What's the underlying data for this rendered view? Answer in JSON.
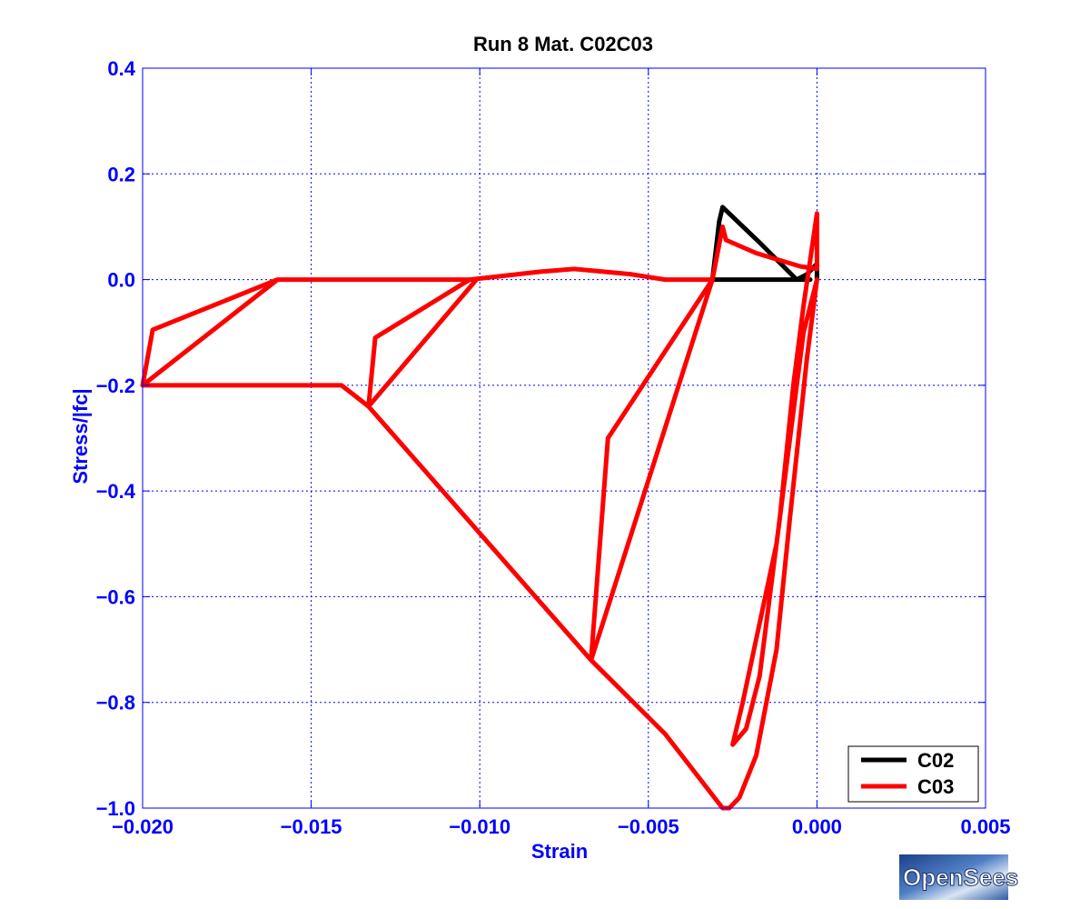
{
  "chart_data": {
    "type": "line",
    "title": "Run 8    Mat. C02C03",
    "xlabel": "Strain",
    "ylabel": "Stress/|fc|",
    "xlim": [
      -0.02,
      0.005
    ],
    "ylim": [
      -1.0,
      0.4
    ],
    "xticks": [
      -0.02,
      -0.015,
      -0.01,
      -0.005,
      0.0,
      0.005
    ],
    "xtick_labels": [
      "−0.020",
      "−0.015",
      "−0.010",
      "−0.005",
      "0.000",
      "0.005"
    ],
    "yticks": [
      0.4,
      0.2,
      0.0,
      -0.2,
      -0.4,
      -0.6,
      -0.8,
      -1.0
    ],
    "ytick_labels": [
      "0.4",
      "0.2",
      "0.0",
      "−0.2",
      "−0.4",
      "−0.6",
      "−0.8",
      "−1.0"
    ],
    "grid": true,
    "grid_style": "dotted",
    "legend_position": "bottom-right",
    "colors": {
      "axis_text": "#0000ff",
      "grid": "#0000ff",
      "frame": "#0000ff"
    },
    "series": [
      {
        "name": "C02",
        "color": "#000000",
        "points": [
          [
            0.0,
            0.0
          ],
          [
            0.0,
            0.03
          ],
          [
            -0.0003,
            0.01
          ],
          [
            -0.0006,
            0.0
          ],
          [
            -0.0017,
            0.07
          ],
          [
            -0.0028,
            0.137
          ],
          [
            -0.0029,
            0.11
          ],
          [
            -0.0031,
            0.0
          ],
          [
            -0.0002,
            0.0
          ]
        ]
      },
      {
        "name": "C03",
        "color": "#ff0000",
        "points": [
          [
            0.0,
            0.0
          ],
          [
            -0.0003,
            -0.15
          ],
          [
            -0.0008,
            -0.45
          ],
          [
            -0.0012,
            -0.7
          ],
          [
            -0.0018,
            -0.9
          ],
          [
            -0.0023,
            -0.98
          ],
          [
            -0.0026,
            -1.0
          ],
          [
            -0.0028,
            -1.0
          ],
          [
            -0.0045,
            -0.86
          ],
          [
            -0.0067,
            -0.72
          ],
          [
            -0.0062,
            -0.3
          ],
          [
            -0.0031,
            0.0
          ],
          [
            -0.0067,
            -0.72
          ],
          [
            -0.01,
            -0.48
          ],
          [
            -0.0133,
            -0.24
          ],
          [
            -0.0136,
            -0.225
          ],
          [
            -0.0141,
            -0.2
          ],
          [
            -0.02,
            -0.2
          ],
          [
            -0.0197,
            -0.095
          ],
          [
            -0.016,
            0.0
          ],
          [
            -0.02,
            -0.2
          ],
          [
            -0.016,
            0.0
          ],
          [
            -0.0101,
            0.0
          ],
          [
            -0.0133,
            -0.24
          ],
          [
            -0.0131,
            -0.11
          ],
          [
            -0.0103,
            0.0
          ],
          [
            -0.0082,
            0.015
          ],
          [
            -0.0072,
            0.02
          ],
          [
            -0.0055,
            0.01
          ],
          [
            -0.0045,
            0.0
          ],
          [
            -0.0031,
            0.0
          ],
          [
            -0.0028,
            0.1
          ],
          [
            -0.0027,
            0.075
          ],
          [
            -0.0018,
            0.05
          ],
          [
            -0.0005,
            0.025
          ],
          [
            0.0,
            0.02
          ],
          [
            0.0,
            0.125
          ],
          [
            -0.0004,
            -0.05
          ],
          [
            -0.0007,
            -0.2
          ],
          [
            -0.0011,
            -0.45
          ],
          [
            -0.0014,
            -0.6
          ],
          [
            -0.0017,
            -0.75
          ],
          [
            -0.0021,
            -0.85
          ],
          [
            -0.0025,
            -0.88
          ],
          [
            -0.0022,
            -0.8
          ],
          [
            -0.0017,
            -0.65
          ],
          [
            -0.0012,
            -0.5
          ],
          [
            -0.0008,
            -0.3
          ],
          [
            -0.0004,
            -0.1
          ],
          [
            0.0,
            0.0
          ]
        ]
      }
    ]
  },
  "logo": {
    "text": "OpenSees"
  }
}
